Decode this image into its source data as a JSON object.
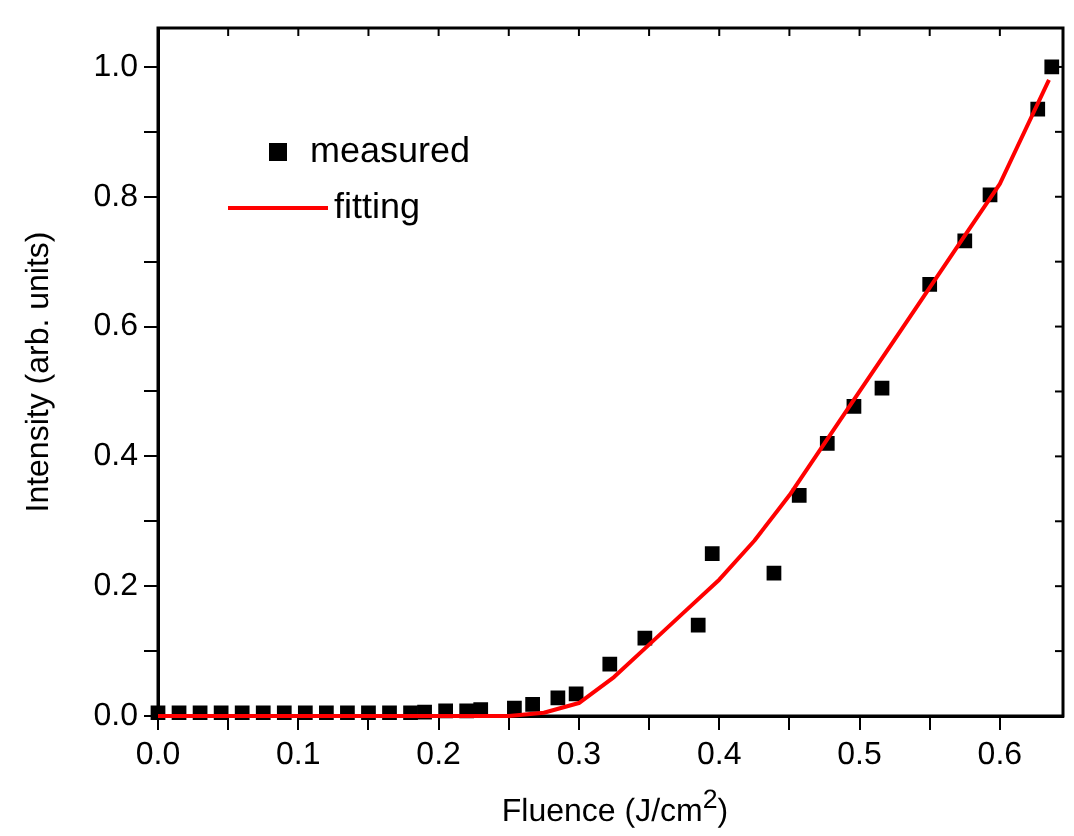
{
  "chart_data": {
    "type": "scatter",
    "xlabel": "Fluence (J/cm$^{2}$)",
    "ylabel": "Intensity (arb. units)",
    "xlim": [
      0,
      0.645
    ],
    "ylim": [
      0,
      1.06
    ],
    "xticks": [
      {
        "value": 0,
        "label": "0.0"
      },
      {
        "value": 0.05,
        "label": null
      },
      {
        "value": 0.1,
        "label": "0.1"
      },
      {
        "value": 0.15,
        "label": null
      },
      {
        "value": 0.2,
        "label": "0.2"
      },
      {
        "value": 0.25,
        "label": null
      },
      {
        "value": 0.3,
        "label": "0.3"
      },
      {
        "value": 0.35,
        "label": null
      },
      {
        "value": 0.4,
        "label": "0.4"
      },
      {
        "value": 0.45,
        "label": null
      },
      {
        "value": 0.5,
        "label": "0.5"
      },
      {
        "value": 0.55,
        "label": null
      },
      {
        "value": 0.6,
        "label": "0.6"
      }
    ],
    "yticks": [
      {
        "value": 0,
        "label": "0.0"
      },
      {
        "value": 0.1,
        "label": null
      },
      {
        "value": 0.2,
        "label": "0.2"
      },
      {
        "value": 0.3,
        "label": null
      },
      {
        "value": 0.4,
        "label": "0.4"
      },
      {
        "value": 0.5,
        "label": null
      },
      {
        "value": 0.6,
        "label": "0.6"
      },
      {
        "value": 0.7,
        "label": null
      },
      {
        "value": 0.8,
        "label": "0.8"
      },
      {
        "value": 0.9,
        "label": null
      },
      {
        "value": 1.0,
        "label": "1.0"
      }
    ],
    "grid": false,
    "legend": "top left",
    "series": [
      {
        "name": "measured",
        "marker": "square",
        "color": "#000000",
        "x": [
          0,
          0.015,
          0.03,
          0.045,
          0.06,
          0.075,
          0.09,
          0.105,
          0.12,
          0.135,
          0.15,
          0.165,
          0.18,
          0.19,
          0.205,
          0.22,
          0.23,
          0.254,
          0.267,
          0.285,
          0.298,
          0.322,
          0.347,
          0.385,
          0.395,
          0.439,
          0.457,
          0.477,
          0.496,
          0.516,
          0.55,
          0.575,
          0.593,
          0.627,
          0.637
        ],
        "values": [
          0.005,
          0.005,
          0.005,
          0.005,
          0.005,
          0.005,
          0.005,
          0.005,
          0.005,
          0.005,
          0.005,
          0.005,
          0.005,
          0.006,
          0.008,
          0.008,
          0.01,
          0.012,
          0.018,
          0.028,
          0.034,
          0.08,
          0.12,
          0.14,
          0.25,
          0.22,
          0.34,
          0.42,
          0.477,
          0.505,
          0.665,
          0.732,
          0.803,
          0.935,
          1.0
        ]
      },
      {
        "name": "fitting",
        "type": "line",
        "marker": "none",
        "line_style": "solid",
        "color": "#ff0000",
        "x": [
          0,
          0.1,
          0.2,
          0.25,
          0.275,
          0.3,
          0.325,
          0.35,
          0.375,
          0.4,
          0.425,
          0.45,
          0.475,
          0.5,
          0.525,
          0.55,
          0.575,
          0.6,
          0.635
        ],
        "values": [
          0,
          0,
          0,
          0,
          0.005,
          0.02,
          0.06,
          0.11,
          0.16,
          0.21,
          0.27,
          0.34,
          0.42,
          0.5,
          0.58,
          0.66,
          0.74,
          0.82,
          0.98
        ]
      }
    ]
  }
}
